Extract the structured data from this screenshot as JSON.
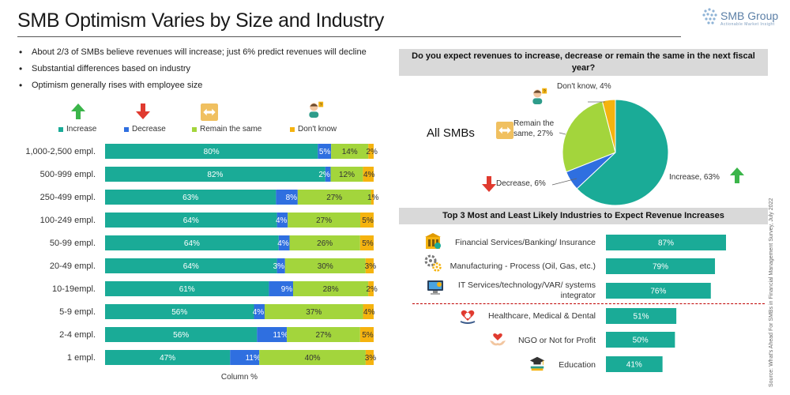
{
  "page": {
    "title": "SMB Optimism Varies by Size and Industry",
    "logo": "SMB Group",
    "logo_tagline": "Actionable Market Insight",
    "bullets": [
      "About 2/3 of SMBs believe revenues will increase; just 6% predict revenues will decline",
      "Substantial differences based on industry",
      "Optimism generally rises with employee size"
    ],
    "source": "Source: What's Ahead For SMBs in Financial Management Survey, July 2022",
    "colors": {
      "increase": "#1aab97",
      "decrease": "#2f6fe0",
      "same": "#a3d53c",
      "dontknow": "#f5b30f"
    },
    "icons": {
      "increase": "green-up-arrow-icon",
      "decrease": "red-down-arrow-icon",
      "same": "two-way-arrow-icon",
      "dontknow": "confused-person-icon"
    }
  },
  "chart_data": [
    {
      "type": "bar",
      "orientation": "horizontal-stacked-100",
      "categories": [
        "1,000-2,500 empl.",
        "500-999 empl.",
        "250-499 empl.",
        "100-249 empl.",
        "50-99 empl.",
        "20-49 empl.",
        "10-19empl.",
        "5-9 empl.",
        "2-4 empl.",
        "1 empl."
      ],
      "series": [
        {
          "name": "Increase",
          "values": [
            80,
            82,
            63,
            64,
            64,
            64,
            61,
            56,
            56,
            47
          ]
        },
        {
          "name": "Decrease",
          "values": [
            5,
            2,
            8,
            4,
            4,
            3,
            9,
            4,
            11,
            11
          ]
        },
        {
          "name": "Remain the same",
          "values": [
            14,
            12,
            27,
            27,
            26,
            30,
            28,
            37,
            27,
            40
          ]
        },
        {
          "name": "Don't know",
          "values": [
            2,
            4,
            1,
            5,
            5,
            3,
            2,
            4,
            5,
            3
          ]
        }
      ],
      "labels": [
        [
          "80%",
          "5%",
          "14%",
          "2%"
        ],
        [
          "82%",
          "2%",
          "12%",
          "4%"
        ],
        [
          "63%",
          "8%",
          "27%",
          "1%"
        ],
        [
          "64%",
          "4%",
          "27%",
          "5%"
        ],
        [
          "64%",
          "4%",
          "26%",
          "5%"
        ],
        [
          "64%",
          "3%",
          "30%",
          "3%"
        ],
        [
          "61%",
          "9%",
          "28%",
          "2%"
        ],
        [
          "56%",
          "4%",
          "37%",
          "4%"
        ],
        [
          "56%",
          "11%",
          "27%",
          "5%"
        ],
        [
          "47%",
          "11%",
          "40%",
          "3%"
        ]
      ],
      "xlabel": "Column %",
      "legend": "top"
    },
    {
      "type": "pie",
      "title": "Do you expect revenues to increase, decrease or remain the same in the next fiscal year?",
      "subtitle": "All SMBs",
      "slices": [
        {
          "name": "Increase",
          "value": 63,
          "label": "Increase, 63%"
        },
        {
          "name": "Decrease",
          "value": 6,
          "label": "Decrease, 6%"
        },
        {
          "name": "Remain the same",
          "value": 27,
          "label": "Remain the same, 27%"
        },
        {
          "name": "Don't know",
          "value": 4,
          "label": "Don't know, 4%"
        }
      ]
    },
    {
      "type": "bar",
      "orientation": "horizontal",
      "title": "Top 3 Most and Least Likely Industries to Expect Revenue Increases",
      "categories": [
        "Financial Services/Banking/ Insurance",
        "Manufacturing - Process (Oil, Gas, etc.)",
        "IT Services/technology/VAR/ systems integrator",
        "Healthcare, Medical & Dental",
        "NGO or Not for Profit",
        "Education"
      ],
      "values": [
        87,
        79,
        76,
        51,
        50,
        41
      ],
      "value_labels": [
        "87%",
        "79%",
        "76%",
        "51%",
        "50%",
        "41%"
      ],
      "icons": [
        "bank-building-icon",
        "gears-icon",
        "computer-icon",
        "heart-hand-icon",
        "heart-hands-icon",
        "graduation-cap-icon"
      ]
    }
  ]
}
